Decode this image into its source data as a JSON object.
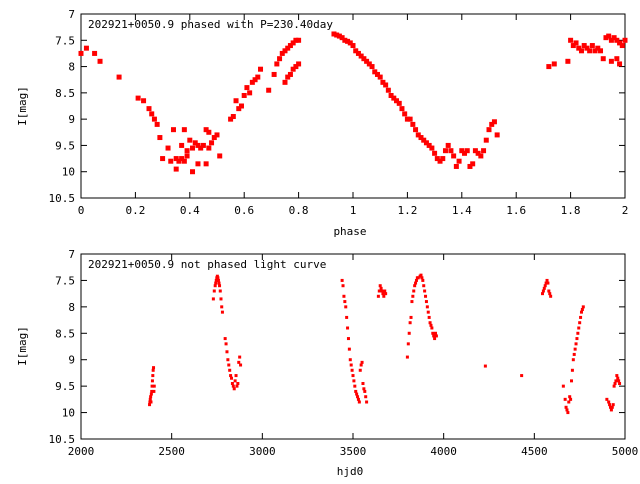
{
  "chart_data": [
    {
      "type": "scatter",
      "title": "202921+0050.9 phased with P=230.40day",
      "xlabel": "phase",
      "ylabel": "I[mag]",
      "xlim": [
        0,
        2
      ],
      "ylim": [
        10.5,
        7
      ],
      "y_inverted": true,
      "xticks": [
        "0",
        "0.2",
        "0.4",
        "0.6",
        "0.8",
        "1",
        "1.2",
        "1.4",
        "1.6",
        "1.8",
        "2"
      ],
      "yticks": [
        "7",
        "7.5",
        "8",
        "8.5",
        "9",
        "9.5",
        "10",
        "10.5"
      ],
      "marker_color": "#ff0000",
      "grid": false,
      "series": [
        {
          "x": [
            0.0,
            0.02,
            0.05,
            0.07,
            0.14,
            0.21,
            0.23,
            0.25,
            0.26,
            0.27,
            0.28,
            0.29,
            0.3,
            0.32,
            0.33,
            0.34,
            0.35,
            0.35,
            0.36,
            0.37,
            0.37,
            0.38,
            0.38,
            0.39,
            0.39,
            0.4,
            0.41,
            0.41,
            0.42,
            0.43,
            0.43,
            0.44,
            0.45,
            0.46,
            0.46,
            0.47,
            0.47,
            0.48,
            0.49,
            0.5,
            0.51,
            0.55,
            0.56,
            0.57,
            0.58,
            0.59,
            0.6,
            0.61,
            0.62,
            0.63,
            0.64,
            0.65,
            0.66,
            0.69,
            0.71,
            0.72,
            0.73,
            0.74,
            0.75,
            0.76,
            0.77,
            0.78,
            0.79,
            0.8,
            0.75,
            0.76,
            0.77,
            0.78,
            0.79,
            0.8
          ],
          "y": [
            7.75,
            7.65,
            7.75,
            7.9,
            8.2,
            8.6,
            8.65,
            8.8,
            8.9,
            9.0,
            9.1,
            9.35,
            9.75,
            9.55,
            9.8,
            9.2,
            9.95,
            9.75,
            9.8,
            9.75,
            9.5,
            9.8,
            9.2,
            9.6,
            9.7,
            9.4,
            9.55,
            10.0,
            9.45,
            9.5,
            9.85,
            9.55,
            9.5,
            9.2,
            9.85,
            9.25,
            9.55,
            9.45,
            9.35,
            9.3,
            9.7,
            9.0,
            8.95,
            8.65,
            8.8,
            8.75,
            8.55,
            8.4,
            8.5,
            8.3,
            8.25,
            8.2,
            8.05,
            8.45,
            8.15,
            7.95,
            7.85,
            7.75,
            7.7,
            7.65,
            7.6,
            7.55,
            7.5,
            7.5,
            8.3,
            8.2,
            8.15,
            8.05,
            8.0,
            7.95
          ]
        },
        {
          "x": [
            0.93,
            0.94,
            0.95,
            0.96,
            0.97,
            0.98,
            0.99,
            1.0,
            1.01,
            1.02,
            1.03,
            1.04,
            1.05,
            1.06,
            1.07,
            1.08,
            1.09,
            1.1,
            1.11,
            1.12,
            1.13,
            1.14,
            1.15,
            1.16,
            1.17,
            1.18,
            1.19,
            1.2,
            1.21,
            1.22,
            1.23,
            1.24,
            1.25,
            1.26,
            1.27,
            1.28,
            1.29,
            1.3,
            1.31,
            1.32,
            1.33,
            1.34,
            1.35,
            1.36,
            1.37,
            1.38,
            1.39,
            1.4,
            1.41,
            1.42,
            1.43,
            1.44,
            1.45,
            1.46,
            1.47,
            1.48,
            1.49,
            1.5,
            1.51,
            1.52,
            1.53
          ],
          "y": [
            7.38,
            7.4,
            7.42,
            7.45,
            7.5,
            7.52,
            7.55,
            7.6,
            7.7,
            7.75,
            7.8,
            7.85,
            7.9,
            7.95,
            8.0,
            8.1,
            8.15,
            8.2,
            8.3,
            8.35,
            8.45,
            8.55,
            8.6,
            8.65,
            8.7,
            8.8,
            8.9,
            9.0,
            9.0,
            9.1,
            9.2,
            9.3,
            9.35,
            9.4,
            9.45,
            9.5,
            9.55,
            9.65,
            9.75,
            9.8,
            9.75,
            9.6,
            9.5,
            9.6,
            9.7,
            9.9,
            9.8,
            9.6,
            9.65,
            9.6,
            9.9,
            9.85,
            9.6,
            9.65,
            9.7,
            9.6,
            9.4,
            9.2,
            9.1,
            9.05,
            9.3
          ]
        },
        {
          "x": [
            1.72,
            1.74,
            1.79,
            1.8,
            1.81,
            1.82,
            1.83,
            1.84,
            1.85,
            1.86,
            1.87,
            1.88,
            1.89,
            1.9,
            1.91,
            1.92,
            1.93,
            1.94,
            1.95,
            1.96,
            1.97,
            1.98,
            1.99,
            2.0,
            1.95,
            1.97,
            1.98
          ],
          "y": [
            8.0,
            7.95,
            7.9,
            7.5,
            7.6,
            7.55,
            7.65,
            7.7,
            7.6,
            7.65,
            7.7,
            7.6,
            7.7,
            7.65,
            7.7,
            7.85,
            7.45,
            7.42,
            7.5,
            7.45,
            7.5,
            7.55,
            7.6,
            7.5,
            7.9,
            7.85,
            7.95
          ]
        }
      ]
    },
    {
      "type": "scatter",
      "title": "202921+0050.9 not phased light curve",
      "xlabel": "hjd0",
      "ylabel": "I[mag]",
      "xlim": [
        2000,
        5000
      ],
      "ylim": [
        10.5,
        7
      ],
      "y_inverted": true,
      "xticks": [
        "2000",
        "2500",
        "3000",
        "3500",
        "4000",
        "4500",
        "5000"
      ],
      "yticks": [
        "7",
        "7.5",
        "8",
        "8.5",
        "9",
        "9.5",
        "10",
        "10.5"
      ],
      "marker_color": "#ff0000",
      "grid": false,
      "series": [
        {
          "x": [
            2378,
            2380,
            2382,
            2384,
            2386,
            2388,
            2390,
            2392,
            2394,
            2396,
            2398,
            2400,
            2402,
            2404,
            2730,
            2735,
            2740,
            2743,
            2746,
            2749,
            2752,
            2755,
            2758,
            2761,
            2764,
            2768,
            2772,
            2776,
            2780,
            2795,
            2800,
            2805,
            2810,
            2815,
            2820,
            2825,
            2830,
            2835,
            2840,
            2845,
            2850,
            2855,
            2860,
            2865,
            2870,
            2875,
            2880
          ],
          "y": [
            9.85,
            9.8,
            9.75,
            9.7,
            9.8,
            9.65,
            9.6,
            9.5,
            9.4,
            9.3,
            9.2,
            9.15,
            9.6,
            9.5,
            7.85,
            7.7,
            7.6,
            7.55,
            7.5,
            7.45,
            7.42,
            7.45,
            7.5,
            7.55,
            7.6,
            7.7,
            7.85,
            8.0,
            8.1,
            8.6,
            8.7,
            8.85,
            9.0,
            9.1,
            9.2,
            9.3,
            9.35,
            9.45,
            9.5,
            9.55,
            9.4,
            9.3,
            9.5,
            9.45,
            9.05,
            8.95,
            9.1
          ]
        },
        {
          "x": [
            3440,
            3445,
            3450,
            3455,
            3460,
            3465,
            3470,
            3475,
            3480,
            3485,
            3490,
            3495,
            3500,
            3505,
            3510,
            3515,
            3520,
            3525,
            3530,
            3535,
            3540,
            3545,
            3550,
            3555,
            3560,
            3565,
            3570,
            3575,
            3640,
            3645,
            3650,
            3655,
            3660,
            3665,
            3670,
            3675,
            3680
          ],
          "y": [
            7.5,
            7.6,
            7.8,
            7.9,
            8.0,
            8.2,
            8.4,
            8.6,
            8.8,
            9.0,
            9.1,
            9.2,
            9.3,
            9.4,
            9.5,
            9.6,
            9.65,
            9.7,
            9.75,
            9.8,
            9.2,
            9.1,
            9.05,
            9.45,
            9.55,
            9.6,
            9.7,
            9.8,
            7.8,
            7.7,
            7.6,
            7.65,
            7.7,
            7.75,
            7.8,
            7.7,
            7.75
          ]
        },
        {
          "x": [
            3800,
            3805,
            3810,
            3815,
            3820,
            3825,
            3830,
            3835,
            3840,
            3845,
            3850,
            3855,
            3860,
            3870,
            3875,
            3880,
            3885,
            3890,
            3895,
            3900,
            3905,
            3910,
            3915,
            3920,
            3925,
            3930,
            3935,
            3940,
            3945,
            3950,
            3955,
            3960
          ],
          "y": [
            8.95,
            8.7,
            8.5,
            8.3,
            8.2,
            7.9,
            7.8,
            7.7,
            7.6,
            7.55,
            7.5,
            7.45,
            7.45,
            7.42,
            7.4,
            7.45,
            7.5,
            7.6,
            7.7,
            7.8,
            7.9,
            8.0,
            8.1,
            8.2,
            8.3,
            8.35,
            8.4,
            8.5,
            8.55,
            8.6,
            8.5,
            8.55
          ]
        },
        {
          "x": [
            4230,
            4430,
            4545,
            4550,
            4555,
            4560,
            4565,
            4570,
            4575,
            4580,
            4585,
            4590,
            4660,
            4670,
            4675,
            4680,
            4685,
            4690,
            4695,
            4700,
            4705,
            4710,
            4715,
            4720,
            4725,
            4730,
            4735,
            4740,
            4745,
            4750,
            4755,
            4760,
            4765,
            4770,
            4900,
            4910,
            4915,
            4920,
            4925,
            4930,
            4935,
            4940,
            4945,
            4950,
            4955,
            4960,
            4965,
            4970
          ],
          "y": [
            9.12,
            9.3,
            7.75,
            7.7,
            7.65,
            7.6,
            7.55,
            7.5,
            7.55,
            7.7,
            7.75,
            7.8,
            9.5,
            9.75,
            9.9,
            9.95,
            10.0,
            9.8,
            9.7,
            9.75,
            9.4,
            9.2,
            9.0,
            8.9,
            8.8,
            8.7,
            8.6,
            8.5,
            8.4,
            8.3,
            8.2,
            8.1,
            8.05,
            8.0,
            9.75,
            9.8,
            9.85,
            9.9,
            9.95,
            9.9,
            9.85,
            9.5,
            9.45,
            9.4,
            9.3,
            9.35,
            9.4,
            9.45
          ]
        }
      ]
    }
  ]
}
